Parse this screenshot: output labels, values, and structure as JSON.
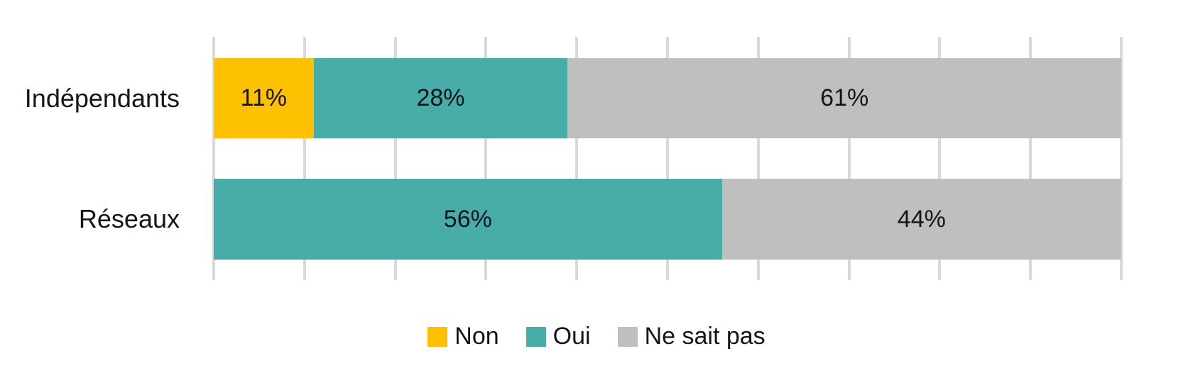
{
  "chart_data": {
    "type": "bar",
    "orientation": "horizontal",
    "stacked": true,
    "title": "",
    "categories": [
      "Indépendants",
      "Réseaux"
    ],
    "series": [
      {
        "name": "Non",
        "color": "#fdc101",
        "values": [
          11,
          0
        ]
      },
      {
        "name": "Oui",
        "color": "#48ada9",
        "values": [
          28,
          56
        ]
      },
      {
        "name": "Ne sait pas",
        "color": "#bfbfbf",
        "values": [
          61,
          44
        ]
      }
    ],
    "data_label_suffix": "%",
    "xlim": [
      0,
      100
    ],
    "gridline_step_pct": 10,
    "grid_on": true,
    "gridline_color": "#d9d9d9",
    "text_color": "#15151b",
    "legend_position": "bottom",
    "legend_items": [
      "Non",
      "Oui",
      "Ne sait pas"
    ]
  }
}
